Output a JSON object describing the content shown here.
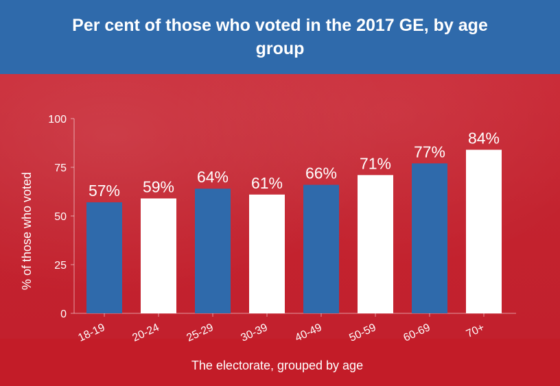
{
  "title": "Per cent of those who voted in the 2017 GE, by age group",
  "chart_data": {
    "type": "bar",
    "title": "Per cent of those who voted in the 2017 GE, by age group",
    "categories": [
      "18-19",
      "20-24",
      "25-29",
      "30-39",
      "40-49",
      "50-59",
      "60-69",
      "70+"
    ],
    "values": [
      57,
      59,
      64,
      61,
      66,
      71,
      77,
      84
    ],
    "value_labels": [
      "57%",
      "59%",
      "64%",
      "61%",
      "66%",
      "71%",
      "77%",
      "84%"
    ],
    "bar_colors": [
      "#2f6aab",
      "#ffffff",
      "#2f6aab",
      "#ffffff",
      "#2f6aab",
      "#ffffff",
      "#2f6aab",
      "#ffffff"
    ],
    "xlabel": "The electorate, grouped by age",
    "ylabel": "% of those who voted",
    "ylim": [
      0,
      100
    ],
    "yticks": [
      0,
      25,
      50,
      75,
      100
    ],
    "grid": false
  },
  "colors": {
    "title_bar": "#2f6aab",
    "background": "#c52634",
    "text": "#ffffff"
  }
}
